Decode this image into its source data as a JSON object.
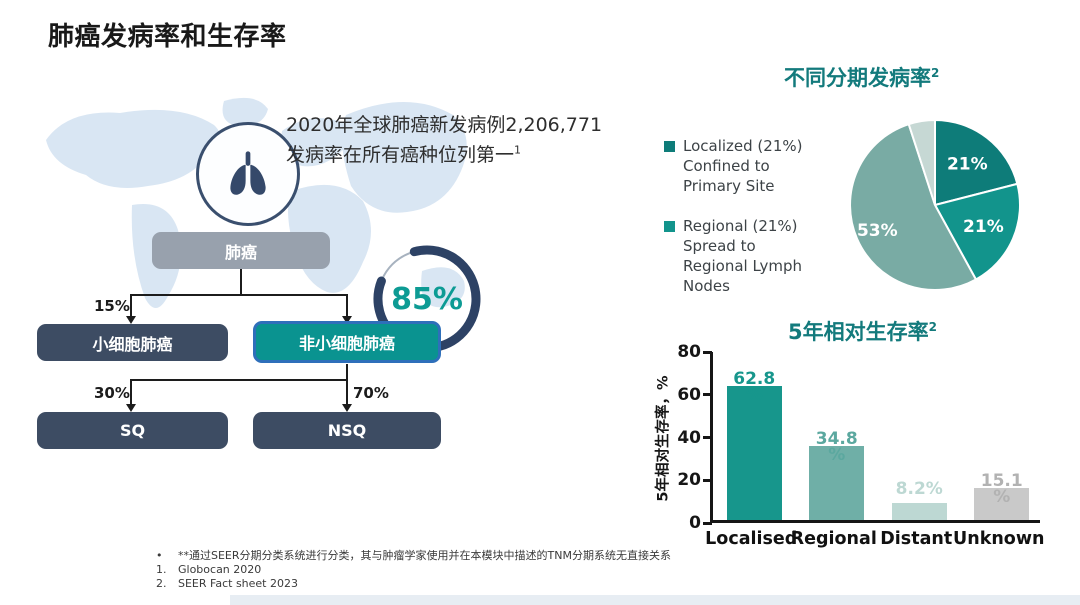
{
  "header": {
    "title": "肺癌发病率和生存率"
  },
  "overview": {
    "line1": "2020年全球肺癌新发病例2,206,771",
    "line2": "发病率在所有癌种位列第一",
    "line2_sup": "1"
  },
  "flowchart": {
    "root_label": "肺癌",
    "branch_left_pct": "15%",
    "branch_left_label": "小细胞肺癌",
    "branch_right_label": "非小细胞肺癌",
    "sub_left_pct": "30%",
    "sub_left_label": "SQ",
    "sub_right_pct": "70%",
    "sub_right_label": "NSQ"
  },
  "stage_section": {
    "title": "不同分期发病率",
    "title_sup": "2",
    "legend": [
      {
        "color": "#0e7c79",
        "lines": [
          "Localized (21%)",
          "Confined to",
          "Primary Site"
        ]
      },
      {
        "color": "#12948c",
        "lines": [
          "Regional (21%)",
          "Spread to",
          "Regional Lymph",
          "Nodes"
        ]
      }
    ]
  },
  "survival_section": {
    "title": "5年相对生存率",
    "title_sup": "2"
  },
  "footnotes": [
    {
      "marker": "•",
      "text": "**通过SEER分期分类系统进行分类，其与肿瘤学家使用并在本模块中描述的TNM分期系统无直接关系"
    },
    {
      "marker": "1.",
      "text": "Globocan 2020"
    },
    {
      "marker": "2.",
      "text": "SEER Fact sheet 2023"
    }
  ],
  "colors": {
    "navy_box": "#3d4c63",
    "gray_box": "#98a1ad",
    "teal_box_fill": "#0a9390",
    "teal_box_border": "#2e6fba",
    "heading_teal": "#137a7c",
    "donut_ring_navy": "#2d4265",
    "donut_text_teal": "#0d9b94"
  },
  "chart_data": [
    {
      "id": "nsclc-donut",
      "type": "donut",
      "value": 85,
      "display": "85%",
      "ring_color": "#2d4265",
      "track_color": "#a7b2bf",
      "text_color": "#0d9b94"
    },
    {
      "id": "stage-pie",
      "type": "pie",
      "title": "不同分期发病率²",
      "start_angle": "12-oclock",
      "direction": "clockwise",
      "label_color": "#ffffff",
      "slices": [
        {
          "label": "Localized — Confined to Primary Site",
          "value": 21,
          "display": "21%",
          "color": "#0e7c79"
        },
        {
          "label": "Regional — Spread to Regional Lymph Nodes",
          "value": 21,
          "display": "21%",
          "color": "#12948c"
        },
        {
          "label": "",
          "value": 53,
          "display": "53%",
          "color": "#79aba4"
        },
        {
          "label": "",
          "value": 5,
          "display": "",
          "color": "#c6d8d4"
        }
      ]
    },
    {
      "id": "survival-bar",
      "type": "bar",
      "title": "5年相对生存率²",
      "ylabel": "5年相对生存率，%",
      "ylim": [
        0,
        80
      ],
      "yticks": [
        0,
        20,
        40,
        60,
        80
      ],
      "categories": [
        "Localised",
        "Regional",
        "Distant",
        "Unknown"
      ],
      "values": [
        62.8,
        34.8,
        8.2,
        15.1
      ],
      "label_lines": [
        [
          "62.8",
          "%"
        ],
        [
          "34.8",
          "%"
        ],
        [
          "8.2%"
        ],
        [
          "15.1",
          "%"
        ]
      ],
      "bar_colors": [
        "#17968c",
        "#6fafa7",
        "#bdd8d3",
        "#c9c9c9"
      ],
      "label_colors": [
        "#17968c",
        "#5ba89f",
        "#bdd8d3",
        "#b2b2b2"
      ],
      "grid": false,
      "legend": "none"
    }
  ]
}
